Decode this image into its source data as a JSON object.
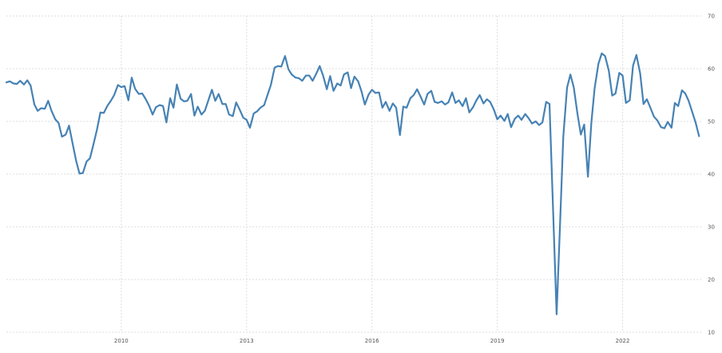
{
  "chart_data": {
    "type": "line",
    "title": "",
    "xlabel": "",
    "ylabel": "",
    "x_tick_labels": [
      "2010",
      "2013",
      "2016",
      "2019",
      "2022"
    ],
    "y_tick_labels": [
      "10",
      "20",
      "30",
      "40",
      "50",
      "60",
      "70"
    ],
    "ylim": [
      10,
      70
    ],
    "xlim": [
      2007.25,
      2023.92
    ],
    "grid": true,
    "legend": "none",
    "series": [
      {
        "color": "#4682b4",
        "points": [
          [
            2007.25,
            57.4
          ],
          [
            2007.33,
            57.6
          ],
          [
            2007.42,
            57.2
          ],
          [
            2007.5,
            57.1
          ],
          [
            2007.58,
            57.7
          ],
          [
            2007.67,
            57.0
          ],
          [
            2007.75,
            57.8
          ],
          [
            2007.83,
            56.8
          ],
          [
            2007.92,
            53.2
          ],
          [
            2008.0,
            52.0
          ],
          [
            2008.08,
            52.5
          ],
          [
            2008.17,
            52.4
          ],
          [
            2008.25,
            53.9
          ],
          [
            2008.33,
            52.0
          ],
          [
            2008.42,
            50.4
          ],
          [
            2008.5,
            49.7
          ],
          [
            2008.58,
            47.1
          ],
          [
            2008.67,
            47.5
          ],
          [
            2008.75,
            49.2
          ],
          [
            2008.83,
            46.0
          ],
          [
            2008.92,
            42.5
          ],
          [
            2009.0,
            40.1
          ],
          [
            2009.08,
            40.2
          ],
          [
            2009.17,
            42.4
          ],
          [
            2009.25,
            43.0
          ],
          [
            2009.33,
            45.5
          ],
          [
            2009.42,
            48.5
          ],
          [
            2009.5,
            51.7
          ],
          [
            2009.58,
            51.6
          ],
          [
            2009.67,
            53.0
          ],
          [
            2009.75,
            53.9
          ],
          [
            2009.83,
            55.0
          ],
          [
            2009.92,
            56.9
          ],
          [
            2010.0,
            56.5
          ],
          [
            2010.08,
            56.7
          ],
          [
            2010.17,
            54.0
          ],
          [
            2010.25,
            58.3
          ],
          [
            2010.33,
            56.2
          ],
          [
            2010.42,
            55.2
          ],
          [
            2010.5,
            55.3
          ],
          [
            2010.58,
            54.3
          ],
          [
            2010.67,
            52.9
          ],
          [
            2010.75,
            51.3
          ],
          [
            2010.83,
            52.7
          ],
          [
            2010.92,
            53.1
          ],
          [
            2011.0,
            52.9
          ],
          [
            2011.08,
            49.8
          ],
          [
            2011.17,
            54.4
          ],
          [
            2011.25,
            52.6
          ],
          [
            2011.33,
            57.0
          ],
          [
            2011.42,
            54.3
          ],
          [
            2011.5,
            53.8
          ],
          [
            2011.58,
            53.9
          ],
          [
            2011.67,
            55.2
          ],
          [
            2011.75,
            51.1
          ],
          [
            2011.83,
            52.8
          ],
          [
            2011.92,
            51.3
          ],
          [
            2012.0,
            52.0
          ],
          [
            2012.08,
            53.9
          ],
          [
            2012.17,
            56.0
          ],
          [
            2012.25,
            53.9
          ],
          [
            2012.33,
            55.2
          ],
          [
            2012.42,
            53.3
          ],
          [
            2012.5,
            53.3
          ],
          [
            2012.58,
            51.3
          ],
          [
            2012.67,
            51.0
          ],
          [
            2012.75,
            53.6
          ],
          [
            2012.83,
            52.3
          ],
          [
            2012.92,
            50.7
          ],
          [
            2013.0,
            50.3
          ],
          [
            2013.08,
            48.8
          ],
          [
            2013.17,
            51.5
          ],
          [
            2013.25,
            51.9
          ],
          [
            2013.33,
            52.6
          ],
          [
            2013.42,
            53.1
          ],
          [
            2013.5,
            55.0
          ],
          [
            2013.58,
            56.9
          ],
          [
            2013.67,
            60.2
          ],
          [
            2013.75,
            60.5
          ],
          [
            2013.83,
            60.4
          ],
          [
            2013.92,
            62.4
          ],
          [
            2014.0,
            59.9
          ],
          [
            2014.08,
            58.9
          ],
          [
            2014.17,
            58.3
          ],
          [
            2014.25,
            58.2
          ],
          [
            2014.33,
            57.7
          ],
          [
            2014.42,
            58.7
          ],
          [
            2014.5,
            58.7
          ],
          [
            2014.58,
            57.7
          ],
          [
            2014.67,
            59.1
          ],
          [
            2014.75,
            60.5
          ],
          [
            2014.83,
            58.7
          ],
          [
            2014.92,
            56.1
          ],
          [
            2015.0,
            58.6
          ],
          [
            2015.08,
            55.8
          ],
          [
            2015.17,
            57.2
          ],
          [
            2015.25,
            56.8
          ],
          [
            2015.33,
            58.9
          ],
          [
            2015.42,
            59.3
          ],
          [
            2015.5,
            56.3
          ],
          [
            2015.58,
            58.5
          ],
          [
            2015.67,
            57.6
          ],
          [
            2015.75,
            55.7
          ],
          [
            2015.83,
            53.2
          ],
          [
            2015.92,
            55.1
          ],
          [
            2016.0,
            56.0
          ],
          [
            2016.08,
            55.4
          ],
          [
            2016.17,
            55.5
          ],
          [
            2016.25,
            52.6
          ],
          [
            2016.33,
            53.7
          ],
          [
            2016.42,
            52.0
          ],
          [
            2016.5,
            53.4
          ],
          [
            2016.58,
            52.6
          ],
          [
            2016.67,
            47.4
          ],
          [
            2016.75,
            52.8
          ],
          [
            2016.83,
            52.6
          ],
          [
            2016.92,
            54.4
          ],
          [
            2017.0,
            55.0
          ],
          [
            2017.08,
            56.1
          ],
          [
            2017.17,
            54.6
          ],
          [
            2017.25,
            53.2
          ],
          [
            2017.33,
            55.2
          ],
          [
            2017.42,
            55.8
          ],
          [
            2017.5,
            53.7
          ],
          [
            2017.58,
            53.5
          ],
          [
            2017.67,
            53.8
          ],
          [
            2017.75,
            53.2
          ],
          [
            2017.83,
            53.6
          ],
          [
            2017.92,
            55.5
          ],
          [
            2018.0,
            53.5
          ],
          [
            2018.08,
            54.0
          ],
          [
            2018.17,
            52.9
          ],
          [
            2018.25,
            54.4
          ],
          [
            2018.33,
            51.7
          ],
          [
            2018.42,
            52.7
          ],
          [
            2018.5,
            54.0
          ],
          [
            2018.58,
            55.0
          ],
          [
            2018.67,
            53.4
          ],
          [
            2018.75,
            54.2
          ],
          [
            2018.83,
            53.7
          ],
          [
            2018.92,
            52.2
          ],
          [
            2019.0,
            50.4
          ],
          [
            2019.08,
            51.1
          ],
          [
            2019.17,
            50.1
          ],
          [
            2019.25,
            51.4
          ],
          [
            2019.33,
            48.9
          ],
          [
            2019.42,
            50.5
          ],
          [
            2019.5,
            51.1
          ],
          [
            2019.58,
            50.3
          ],
          [
            2019.67,
            51.4
          ],
          [
            2019.75,
            50.6
          ],
          [
            2019.83,
            49.6
          ],
          [
            2019.92,
            50.0
          ],
          [
            2020.0,
            49.3
          ],
          [
            2020.08,
            49.8
          ],
          [
            2020.17,
            53.7
          ],
          [
            2020.25,
            53.3
          ],
          [
            2020.33,
            34.5
          ],
          [
            2020.42,
            13.4
          ],
          [
            2020.5,
            30.0
          ],
          [
            2020.58,
            47.1
          ],
          [
            2020.67,
            56.4
          ],
          [
            2020.75,
            58.9
          ],
          [
            2020.83,
            56.5
          ],
          [
            2020.92,
            51.4
          ],
          [
            2021.0,
            47.5
          ],
          [
            2021.08,
            49.4
          ],
          [
            2021.17,
            39.5
          ],
          [
            2021.25,
            49.6
          ],
          [
            2021.33,
            56.3
          ],
          [
            2021.42,
            60.9
          ],
          [
            2021.5,
            62.9
          ],
          [
            2021.58,
            62.4
          ],
          [
            2021.67,
            59.6
          ],
          [
            2021.75,
            54.9
          ],
          [
            2021.83,
            55.3
          ],
          [
            2021.92,
            59.2
          ],
          [
            2022.0,
            58.7
          ],
          [
            2022.08,
            53.5
          ],
          [
            2022.17,
            54.0
          ],
          [
            2022.25,
            60.6
          ],
          [
            2022.33,
            62.6
          ],
          [
            2022.42,
            59.1
          ],
          [
            2022.5,
            53.3
          ],
          [
            2022.58,
            54.2
          ],
          [
            2022.67,
            52.5
          ],
          [
            2022.75,
            50.9
          ],
          [
            2022.83,
            50.2
          ],
          [
            2022.92,
            48.9
          ],
          [
            2023.0,
            48.7
          ],
          [
            2023.08,
            49.9
          ],
          [
            2023.17,
            48.8
          ],
          [
            2023.25,
            53.5
          ],
          [
            2023.33,
            52.9
          ],
          [
            2023.42,
            55.9
          ],
          [
            2023.5,
            55.3
          ],
          [
            2023.58,
            53.9
          ],
          [
            2023.67,
            51.7
          ],
          [
            2023.75,
            49.7
          ],
          [
            2023.83,
            47.2
          ]
        ]
      }
    ]
  },
  "colors": {
    "line": "#4682b4",
    "grid": "#dddddd",
    "tick_text": "#555555",
    "background": "#ffffff"
  }
}
